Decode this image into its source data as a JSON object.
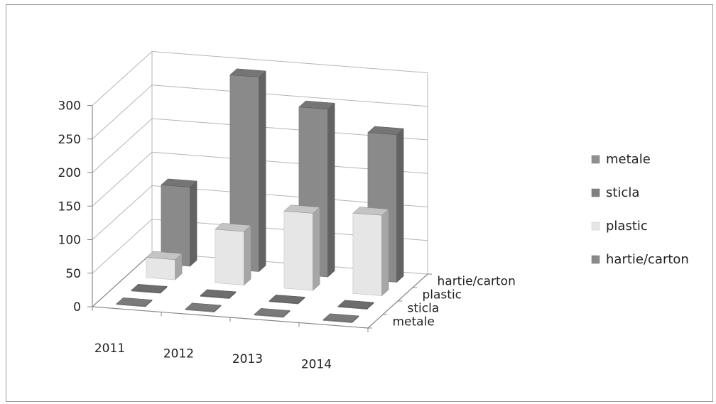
{
  "chart_data": {
    "type": "bar",
    "subtype": "3d-column",
    "title": "",
    "categories": [
      "2011",
      "2012",
      "2013",
      "2014"
    ],
    "series": [
      {
        "name": "metale",
        "values": [
          0,
          0,
          0,
          0
        ],
        "color": "#8f8f8f"
      },
      {
        "name": "sticla",
        "values": [
          0,
          0,
          0,
          0
        ],
        "color": "#808080"
      },
      {
        "name": "plastic",
        "values": [
          30,
          80,
          115,
          120
        ],
        "color": "#e6e6e6"
      },
      {
        "name": "hartie/carton",
        "values": [
          118,
          290,
          250,
          220
        ],
        "color": "#8a8a8a"
      }
    ],
    "ylim": [
      0,
      300
    ],
    "yticks": [
      "0",
      "50",
      "100",
      "150",
      "200",
      "250",
      "300"
    ],
    "grid": true,
    "legend_position": "right"
  }
}
